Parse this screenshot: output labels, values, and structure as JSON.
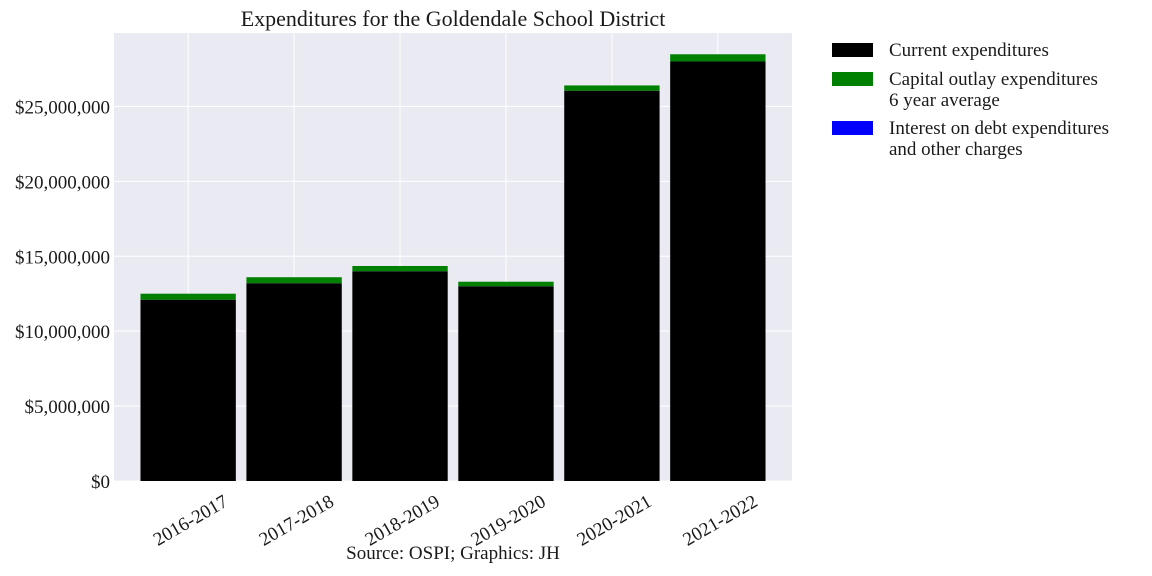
{
  "chart_data": {
    "type": "bar",
    "stacked": true,
    "title": "Expenditures for the Goldendale School District",
    "xlabel": "",
    "ylabel": "",
    "categories": [
      "2016-2017",
      "2017-2018",
      "2018-2019",
      "2019-2020",
      "2020-2021",
      "2021-2022"
    ],
    "series": [
      {
        "name": "Current expenditures",
        "color": "#000000",
        "values": [
          12100000,
          13200000,
          14000000,
          13000000,
          26050000,
          28000000
        ]
      },
      {
        "name": "Capital outlay expenditures\n6 year average",
        "color": "#008000",
        "values": [
          400000,
          400000,
          350000,
          300000,
          350000,
          480000
        ]
      },
      {
        "name": "Interest on debt expenditures\nand other charges",
        "color": "#0000ff",
        "values": [
          0,
          0,
          0,
          0,
          0,
          0
        ]
      }
    ],
    "ylim": [
      0,
      29900000
    ],
    "yticks": [
      0,
      5000000,
      10000000,
      15000000,
      20000000,
      25000000
    ],
    "ytick_labels": [
      "$0",
      "$5,000,000",
      "$10,000,000",
      "$15,000,000",
      "$20,000,000",
      "$25,000,000"
    ],
    "grid": true,
    "legend_position": "outside-right",
    "background_color": "#eaeaf2"
  },
  "source_note": "Source: OSPI; Graphics: JH"
}
